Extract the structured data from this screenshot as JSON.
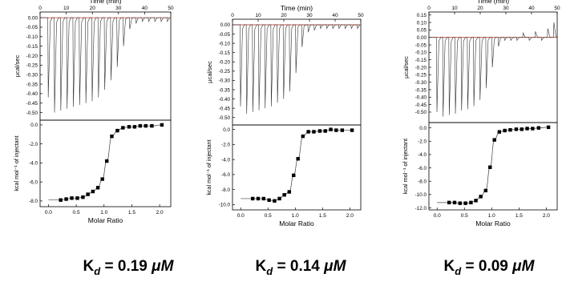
{
  "chart_data": [
    {
      "type": "scatter",
      "top": {
        "xlabel": "Time (min)",
        "ylabel": "µcal/sec",
        "xlim": [
          0,
          50
        ],
        "xticks": [
          "0",
          "10",
          "20",
          "30",
          "40",
          "50"
        ],
        "ylim": [
          -0.54,
          0.03
        ],
        "yticks": [
          "0.00",
          "-0.05",
          "-0.10",
          "-0.15",
          "-0.20",
          "-0.25",
          "-0.30",
          "-0.35",
          "-0.40",
          "-0.45",
          "-0.50"
        ],
        "yticks_values": [
          0,
          -0.05,
          -0.1,
          -0.15,
          -0.2,
          -0.25,
          -0.3,
          -0.35,
          -0.4,
          -0.45,
          -0.5
        ],
        "injections": {
          "time_min": [
            3.0,
            5.4,
            7.8,
            10.2,
            12.6,
            15.0,
            17.4,
            19.8,
            22.2,
            24.6,
            27.0,
            29.4,
            31.8,
            34.2,
            36.6,
            39.0,
            41.4,
            43.8,
            46.2,
            48.6
          ],
          "peak_ucal_s": [
            -0.42,
            -0.5,
            -0.49,
            -0.48,
            -0.47,
            -0.46,
            -0.45,
            -0.44,
            -0.42,
            -0.38,
            -0.33,
            -0.26,
            -0.15,
            -0.06,
            -0.03,
            -0.02,
            -0.02,
            -0.02,
            -0.02,
            -0.02
          ]
        }
      },
      "bottom": {
        "xlabel": "Molar Ratio",
        "ylabel": "kcal mol⁻¹ of injectant",
        "xlim": [
          -0.15,
          2.2
        ],
        "xticks": [
          "0.0",
          "0.5",
          "1.0",
          "1.5",
          "2.0"
        ],
        "xticks_values": [
          0,
          0.5,
          1.0,
          1.5,
          2.0
        ],
        "ylim": [
          -8.6,
          0.5
        ],
        "yticks": [
          "0.0",
          "-2.0",
          "-4.0",
          "-6.0",
          "-8.0"
        ],
        "yticks_values": [
          0,
          -2,
          -4,
          -6,
          -8
        ],
        "x": [
          0.22,
          0.32,
          0.42,
          0.52,
          0.62,
          0.71,
          0.8,
          0.89,
          0.97,
          1.05,
          1.14,
          1.24,
          1.34,
          1.45,
          1.55,
          1.65,
          1.75,
          1.86,
          2.04
        ],
        "y": [
          -7.9,
          -7.8,
          -7.7,
          -7.7,
          -7.6,
          -7.3,
          -7.0,
          -6.6,
          -5.7,
          -3.8,
          -1.2,
          -0.6,
          -0.3,
          -0.2,
          -0.2,
          -0.1,
          -0.1,
          -0.1,
          0.0
        ]
      },
      "kd_label": {
        "prefix": "K",
        "sub": "d",
        "value": "= 0.19",
        "unit": "μM"
      }
    },
    {
      "type": "scatter",
      "top": {
        "xlabel": "Time (min)",
        "ylabel": "µcal/sec",
        "xlim": [
          0,
          50
        ],
        "xticks": [
          "0",
          "10",
          "20",
          "30",
          "40",
          "50"
        ],
        "ylim": [
          -0.54,
          0.03
        ],
        "yticks": [
          "0.00",
          "-0.05",
          "-0.10",
          "-0.15",
          "-0.20",
          "-0.25",
          "-0.30",
          "-0.35",
          "-0.40",
          "-0.45",
          "-0.50"
        ],
        "yticks_values": [
          0,
          -0.05,
          -0.1,
          -0.15,
          -0.2,
          -0.25,
          -0.3,
          -0.35,
          -0.4,
          -0.45,
          -0.5
        ],
        "injections": {
          "time_min": [
            3.0,
            5.4,
            7.8,
            10.2,
            12.6,
            15.0,
            17.4,
            19.8,
            22.2,
            24.6,
            27.0,
            29.4,
            31.8,
            34.2,
            36.6,
            39.0,
            41.4,
            43.8,
            46.2,
            48.6
          ],
          "peak_ucal_s": [
            -0.44,
            -0.48,
            -0.47,
            -0.46,
            -0.45,
            -0.44,
            -0.42,
            -0.4,
            -0.36,
            -0.26,
            -0.12,
            -0.04,
            -0.03,
            -0.02,
            -0.02,
            -0.02,
            -0.02,
            -0.02,
            -0.02,
            -0.02
          ]
        }
      },
      "bottom": {
        "xlabel": "Molar Ratio",
        "ylabel": "kcal mol⁻¹ of injectant",
        "xlim": [
          -0.15,
          2.2
        ],
        "xticks": [
          "0.0",
          "0.5",
          "1.0",
          "1.5",
          "2.0"
        ],
        "xticks_values": [
          0,
          0.5,
          1.0,
          1.5,
          2.0
        ],
        "ylim": [
          -10.7,
          0.6
        ],
        "yticks": [
          "0.0",
          "-2.0",
          "-4.0",
          "-6.0",
          "-8.0",
          "-10.0"
        ],
        "yticks_values": [
          0,
          -2,
          -4,
          -6,
          -8,
          -10
        ],
        "x": [
          0.22,
          0.32,
          0.42,
          0.52,
          0.62,
          0.71,
          0.8,
          0.89,
          0.97,
          1.05,
          1.14,
          1.24,
          1.34,
          1.45,
          1.55,
          1.65,
          1.75,
          1.86,
          2.04
        ],
        "y": [
          -9.2,
          -9.2,
          -9.2,
          -9.4,
          -9.5,
          -9.2,
          -8.7,
          -8.3,
          -6.1,
          -3.9,
          -0.9,
          -0.3,
          -0.3,
          -0.2,
          -0.2,
          0.0,
          -0.1,
          -0.1,
          -0.1
        ]
      },
      "kd_label": {
        "prefix": "K",
        "sub": "d",
        "value": "= 0.14",
        "unit": "μM"
      }
    },
    {
      "type": "scatter",
      "top": {
        "xlabel": "Time (min)",
        "ylabel": "µcal/sec",
        "xlim": [
          0,
          50
        ],
        "xticks": [
          "0",
          "10",
          "20",
          "30",
          "40",
          "50"
        ],
        "ylim": [
          -0.57,
          0.17
        ],
        "yticks": [
          "0.15",
          "0.10",
          "0.05",
          "0.00",
          "-0.05",
          "-0.10",
          "-0.15",
          "-0.20",
          "-0.25",
          "-0.30",
          "-0.35",
          "-0.40",
          "-0.45",
          "-0.50"
        ],
        "yticks_values": [
          0.15,
          0.1,
          0.05,
          0,
          -0.05,
          -0.1,
          -0.15,
          -0.2,
          -0.25,
          -0.3,
          -0.35,
          -0.4,
          -0.45,
          -0.5
        ],
        "injections": {
          "time_min": [
            3.0,
            5.4,
            7.8,
            10.2,
            12.6,
            15.0,
            17.4,
            19.8,
            22.2,
            24.6,
            27.0,
            29.4,
            31.8,
            34.2,
            36.6,
            39.0,
            41.4,
            43.8,
            46.2,
            48.6
          ],
          "peak_ucal_s": [
            -0.5,
            -0.53,
            -0.52,
            -0.51,
            -0.49,
            -0.48,
            -0.46,
            -0.42,
            -0.34,
            -0.2,
            -0.06,
            -0.02,
            -0.02,
            -0.02,
            0.03,
            -0.02,
            0.04,
            -0.02,
            0.06,
            0.1
          ]
        }
      },
      "bottom": {
        "xlabel": "Molar Ratio",
        "ylabel": "kcal mol⁻¹ of injectant",
        "xlim": [
          -0.15,
          2.2
        ],
        "xticks": [
          "0.0",
          "0.5",
          "1.0",
          "1.5",
          "2.0"
        ],
        "xticks_values": [
          0,
          0.5,
          1.0,
          1.5,
          2.0
        ],
        "ylim": [
          -12.3,
          0.8
        ],
        "yticks": [
          "0.0",
          "-2.0",
          "-4.0",
          "-6.0",
          "-8.0",
          "-10.0",
          "-12.0"
        ],
        "yticks_values": [
          0,
          -2,
          -4,
          -6,
          -8,
          -10,
          -12
        ],
        "x": [
          0.22,
          0.32,
          0.42,
          0.52,
          0.62,
          0.71,
          0.8,
          0.89,
          0.97,
          1.05,
          1.14,
          1.24,
          1.34,
          1.45,
          1.55,
          1.65,
          1.75,
          1.86,
          2.04
        ],
        "y": [
          -11.2,
          -11.2,
          -11.3,
          -11.3,
          -11.2,
          -10.9,
          -10.3,
          -9.4,
          -5.9,
          -1.8,
          -0.6,
          -0.4,
          -0.3,
          -0.2,
          -0.2,
          -0.1,
          -0.1,
          0.0,
          0.1
        ]
      },
      "kd_label": {
        "prefix": "K",
        "sub": "d",
        "value": "= 0.09",
        "unit": "μM"
      }
    }
  ],
  "colors": {
    "trace": "#333333",
    "baseline": "#c0392b",
    "fit": "#444444",
    "marker": "#000000"
  }
}
